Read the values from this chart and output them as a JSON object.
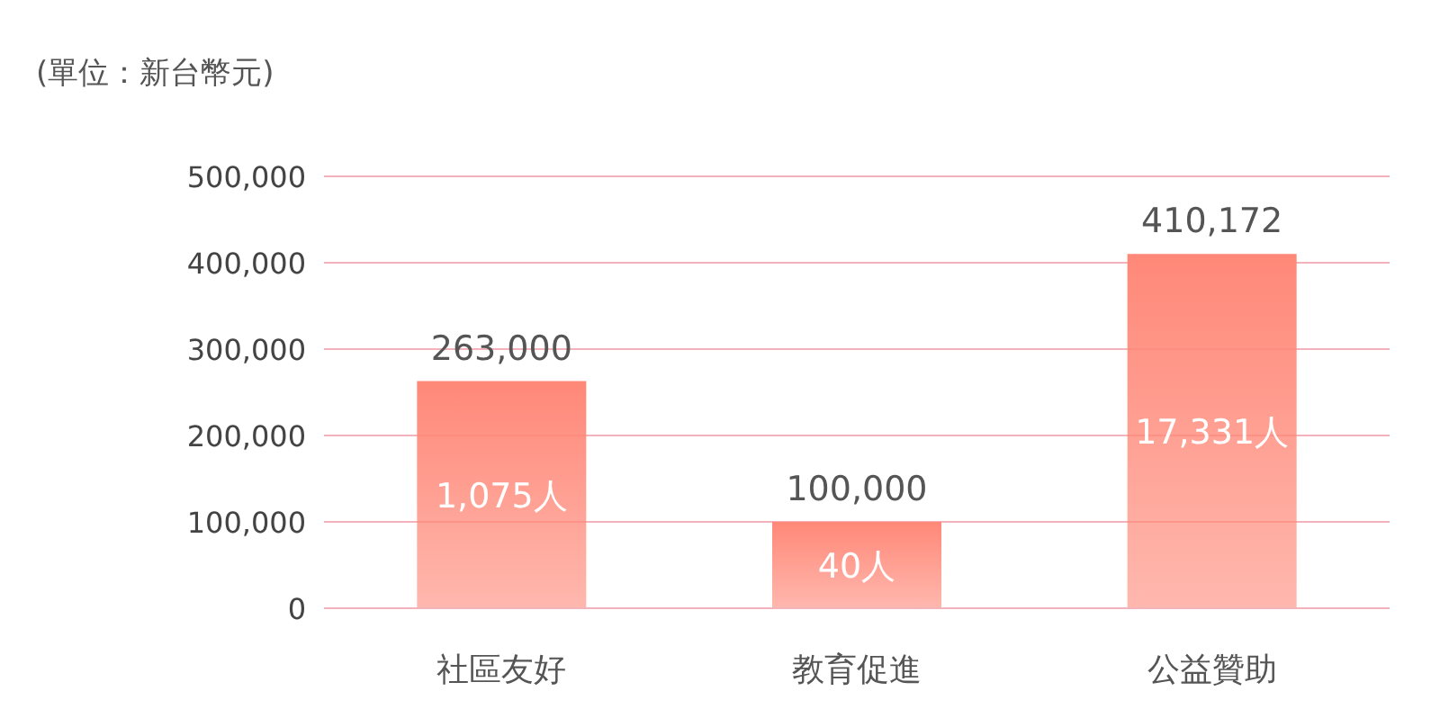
{
  "chart_data": {
    "type": "bar",
    "title": "(單位：新台幣元)",
    "categories": [
      "社區友好",
      "教育促進",
      "公益贊助"
    ],
    "values": [
      263000,
      100000,
      410172
    ],
    "value_labels": [
      "263,000",
      "100,000",
      "410,172"
    ],
    "color": "#ff8878",
    "ylim": [
      0,
      500000
    ],
    "yticks": [
      {
        "value": 0,
        "label": "0"
      },
      {
        "value": 100000,
        "label": "100,000"
      },
      {
        "value": 200000,
        "label": "200,000"
      },
      {
        "value": 300000,
        "label": "300,000"
      },
      {
        "value": 400000,
        "label": "400,000"
      },
      {
        "value": 500000,
        "label": "500,000"
      }
    ],
    "grid": "y",
    "annotations": [
      "1,075人",
      "40人",
      "17,331人"
    ]
  }
}
